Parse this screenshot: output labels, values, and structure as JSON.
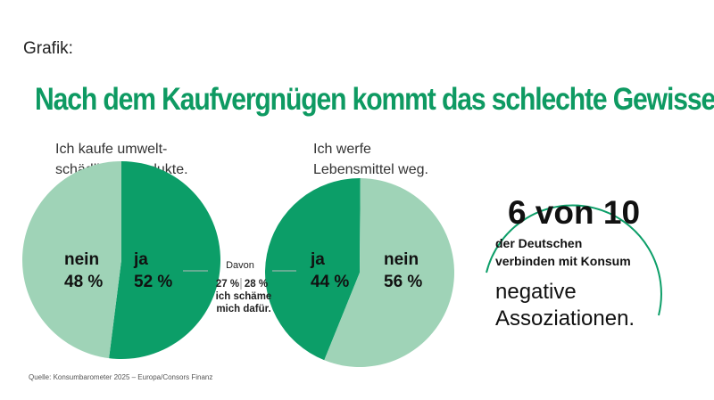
{
  "header": {
    "label": "Grafik:"
  },
  "title": "Nach dem Kaufvergnügen kommt das schlechte Gewissen",
  "colors": {
    "dark_green": "#0c9e68",
    "light_green": "#9fd3b7",
    "title_green": "#0e9a62"
  },
  "chart_data": [
    {
      "type": "pie",
      "subtitle": "Ich kaufe umwelt-\nschädliche Produkte.",
      "subtitle_lines": [
        "Ich kaufe umwelt-",
        "schädliche Produkte."
      ],
      "slices": [
        {
          "name": "ja",
          "value": 52,
          "label": "52 %",
          "color": "#0c9e68"
        },
        {
          "name": "nein",
          "value": 48,
          "label": "48 %",
          "color": "#9fd3b7"
        }
      ],
      "breakdown": {
        "heading": "Davon",
        "values": [
          "27 %",
          "28 %"
        ],
        "caption_lines": [
          "ich schäme",
          "mich dafür."
        ]
      }
    },
    {
      "type": "pie",
      "subtitle": "Ich werfe\nLebensmittel weg.",
      "subtitle_lines": [
        "Ich werfe",
        "Lebensmittel weg."
      ],
      "slices": [
        {
          "name": "ja",
          "value": 44,
          "label": "44 %",
          "color": "#0c9e68"
        },
        {
          "name": "nein",
          "value": 56,
          "label": "56 %",
          "color": "#9fd3b7"
        }
      ]
    }
  ],
  "callout": {
    "big": "6 von 10",
    "line1": "der Deutschen",
    "line2": "verbinden mit Konsum",
    "line3": "negative",
    "line4": "Assoziationen."
  },
  "source": "Quelle: Konsumbarometer 2025 – Europa/Consors Finanz"
}
